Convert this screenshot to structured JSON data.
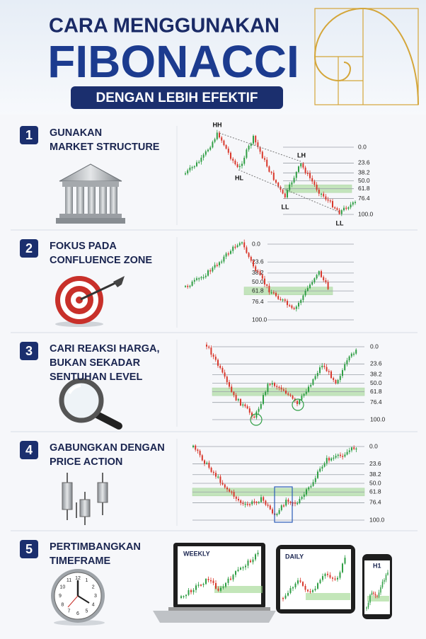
{
  "header": {
    "line1": "CARA MENGGUNAKAN",
    "line2": "FIBONACCI",
    "line3": "DENGAN LEBIH EFEKTIF"
  },
  "steps": [
    {
      "number": "1",
      "title": [
        "GUNAKAN",
        "MARKET STRUCTURE"
      ],
      "levels": [
        "0.0",
        "23.6",
        "38.2",
        "50.0",
        "61.8",
        "76.4",
        "100.0"
      ],
      "annotations": [
        "HH",
        "HL",
        "LH",
        "LL",
        "LL"
      ]
    },
    {
      "number": "2",
      "title": [
        "FOKUS PADA",
        "CONFLUENCE ZONE"
      ],
      "levels": [
        "0.0",
        "23.6",
        "38.2",
        "50.0",
        "61.8",
        "76.4",
        "100.0"
      ]
    },
    {
      "number": "3",
      "title": [
        "CARI REAKSI HARGA,",
        "BUKAN SEKADAR",
        "SENTUHAN LEVEL"
      ],
      "levels": [
        "0.0",
        "23.6",
        "38.2",
        "50.0",
        "61.8",
        "76.4",
        "100.0"
      ]
    },
    {
      "number": "4",
      "title": [
        "GABUNGKAN DENGAN",
        "PRICE ACTION"
      ],
      "levels": [
        "0.0",
        "23.6",
        "38.2",
        "50.0",
        "61.8",
        "76.4",
        "100.0"
      ]
    },
    {
      "number": "5",
      "title": [
        "PERTIMBANGKAN",
        "TIMEFRAME"
      ]
    }
  ],
  "devices": [
    {
      "label": "WEEKLY"
    },
    {
      "label": "DAILY"
    },
    {
      "label": "H1"
    }
  ],
  "clock_numerals": [
    "12",
    "1",
    "2",
    "3",
    "4",
    "5",
    "6",
    "7",
    "8",
    "9",
    "10",
    "11"
  ]
}
